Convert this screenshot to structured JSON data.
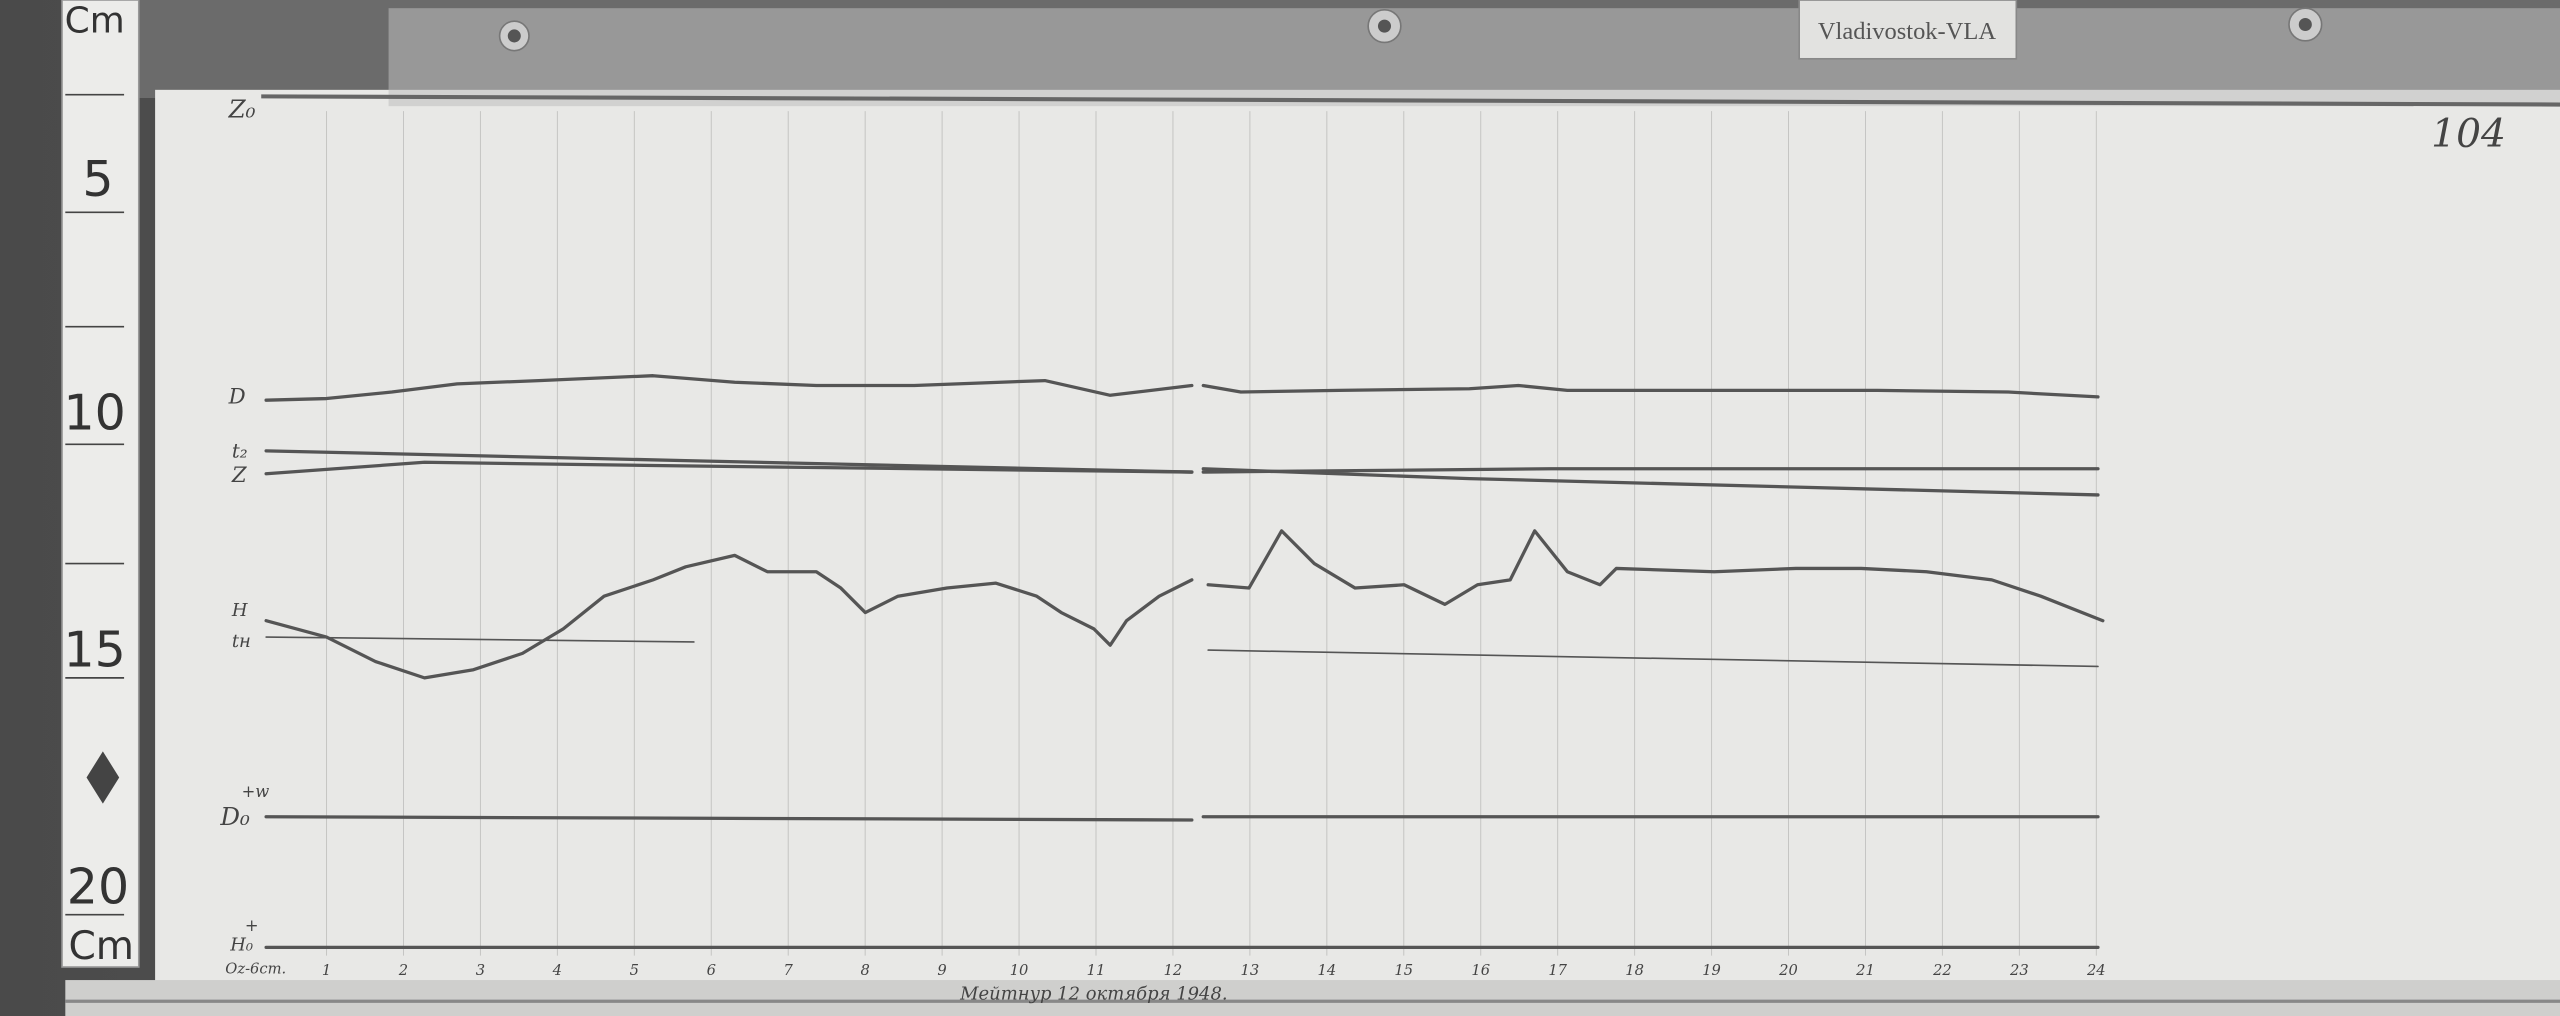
{
  "station_label": "Vladivostok-VLA",
  "sheet_number": "104",
  "caption": "Мейтнур 12 октября 1948.",
  "ruler": {
    "unit_top": "Cm",
    "unit_bottom": "Cm",
    "marks": [
      "5",
      "10",
      "15",
      "20"
    ]
  },
  "channels": {
    "z0": "Z₀",
    "d": "D",
    "t2": "t₂",
    "z": "Z",
    "h": "H",
    "th": "tн",
    "d0": "D₀",
    "d0_sign": "+w",
    "h0": "H₀",
    "h0_sign": "+",
    "time_axis": "Oz-6cm."
  },
  "hours": [
    "1",
    "2",
    "3",
    "4",
    "5",
    "6",
    "7",
    "8",
    "9",
    "10",
    "11",
    "12",
    "13",
    "14",
    "15",
    "16",
    "17",
    "18",
    "19",
    "20",
    "21",
    "22",
    "23",
    "24"
  ],
  "colors": {
    "paper": "#e9e9e7",
    "trace": "#555555",
    "wood": "#5a5a5a"
  }
}
